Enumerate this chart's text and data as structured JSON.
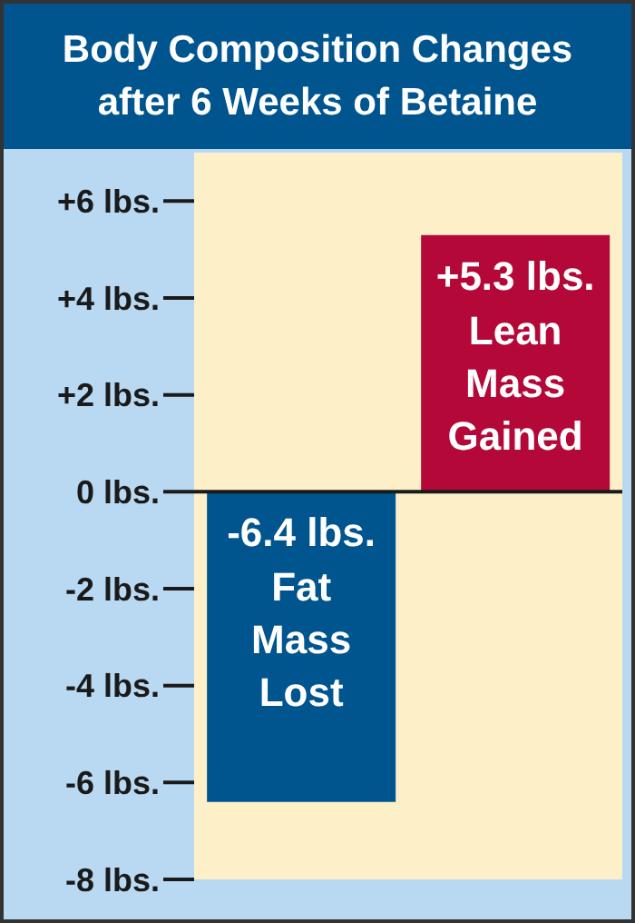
{
  "chart_data": {
    "type": "bar",
    "title": "Body Composition Changes after 6 Weeks of Betaine",
    "categories": [
      "Fat Mass Lost",
      "Lean Mass Gained"
    ],
    "values": [
      -6.4,
      5.3
    ],
    "colors": [
      "#00558f",
      "#b30838"
    ],
    "value_labels": [
      "-6.4 lbs.",
      "+5.3 lbs."
    ],
    "ylim": [
      -8,
      7
    ],
    "yticks": [
      {
        "value": 6,
        "label": "+6 lbs."
      },
      {
        "value": 4,
        "label": "+4 lbs."
      },
      {
        "value": 2,
        "label": "+2 lbs."
      },
      {
        "value": 0,
        "label": "0 lbs."
      },
      {
        "value": -2,
        "label": "-2 lbs."
      },
      {
        "value": -4,
        "label": "-4 lbs."
      },
      {
        "value": -6,
        "label": "-6 lbs."
      },
      {
        "value": -8,
        "label": "-8 lbs."
      }
    ],
    "ref_lines": [
      {
        "axis": "y",
        "value": 0,
        "color": "#1a1a1a"
      }
    ],
    "grid": false,
    "legend": false,
    "tick_labels": "y"
  }
}
